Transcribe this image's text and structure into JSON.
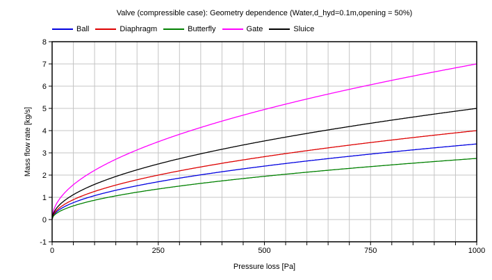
{
  "chart_data": {
    "type": "line",
    "title": "Valve (compressible case): Geometry dependence (Water,d_hyd=0.1m,opening = 50%)",
    "xlabel": "Pressure loss [Pa]",
    "ylabel": "Mass flow rate [kg/s]",
    "xlim": [
      0,
      1000
    ],
    "ylim": [
      -1,
      8
    ],
    "x_major_ticks": [
      0,
      250,
      500,
      750,
      1000
    ],
    "x_minor_tick_step": 50,
    "y_tick_step": 1,
    "grid": {
      "visible": true,
      "x_step": 50,
      "y_step": 1,
      "color": "#c4c4c4"
    },
    "legend_position": "top-left",
    "curve_model": "y = y_at_1000Pa * sqrt(x / 1000)",
    "x_samples": [
      0,
      50,
      100,
      150,
      200,
      250,
      300,
      400,
      500,
      600,
      700,
      800,
      900,
      1000
    ],
    "series": [
      {
        "name": "Ball",
        "color": "#0000e0",
        "y_at_1000Pa": 3.4,
        "values": [
          0,
          0.76,
          1.08,
          1.32,
          1.52,
          1.7,
          1.86,
          2.15,
          2.4,
          2.63,
          2.84,
          3.04,
          3.23,
          3.4
        ]
      },
      {
        "name": "Diaphragm",
        "color": "#dd0000",
        "y_at_1000Pa": 4.0,
        "values": [
          0,
          0.89,
          1.26,
          1.55,
          1.79,
          2.0,
          2.19,
          2.53,
          2.83,
          3.1,
          3.35,
          3.58,
          3.79,
          4.0
        ]
      },
      {
        "name": "Butterfly",
        "color": "#008000",
        "y_at_1000Pa": 2.75,
        "values": [
          0,
          0.61,
          0.87,
          1.07,
          1.23,
          1.37,
          1.51,
          1.74,
          1.94,
          2.13,
          2.3,
          2.46,
          2.61,
          2.75
        ]
      },
      {
        "name": "Gate",
        "color": "#ff00ff",
        "y_at_1000Pa": 7.0,
        "values": [
          0,
          1.57,
          2.21,
          2.71,
          3.13,
          3.5,
          3.83,
          4.43,
          4.95,
          5.42,
          5.86,
          6.26,
          6.64,
          7.0
        ]
      },
      {
        "name": "Sluice",
        "color": "#000000",
        "y_at_1000Pa": 5.0,
        "values": [
          0,
          1.12,
          1.58,
          1.94,
          2.24,
          2.5,
          2.74,
          3.16,
          3.54,
          3.87,
          4.18,
          4.47,
          4.74,
          5.0
        ]
      }
    ]
  }
}
